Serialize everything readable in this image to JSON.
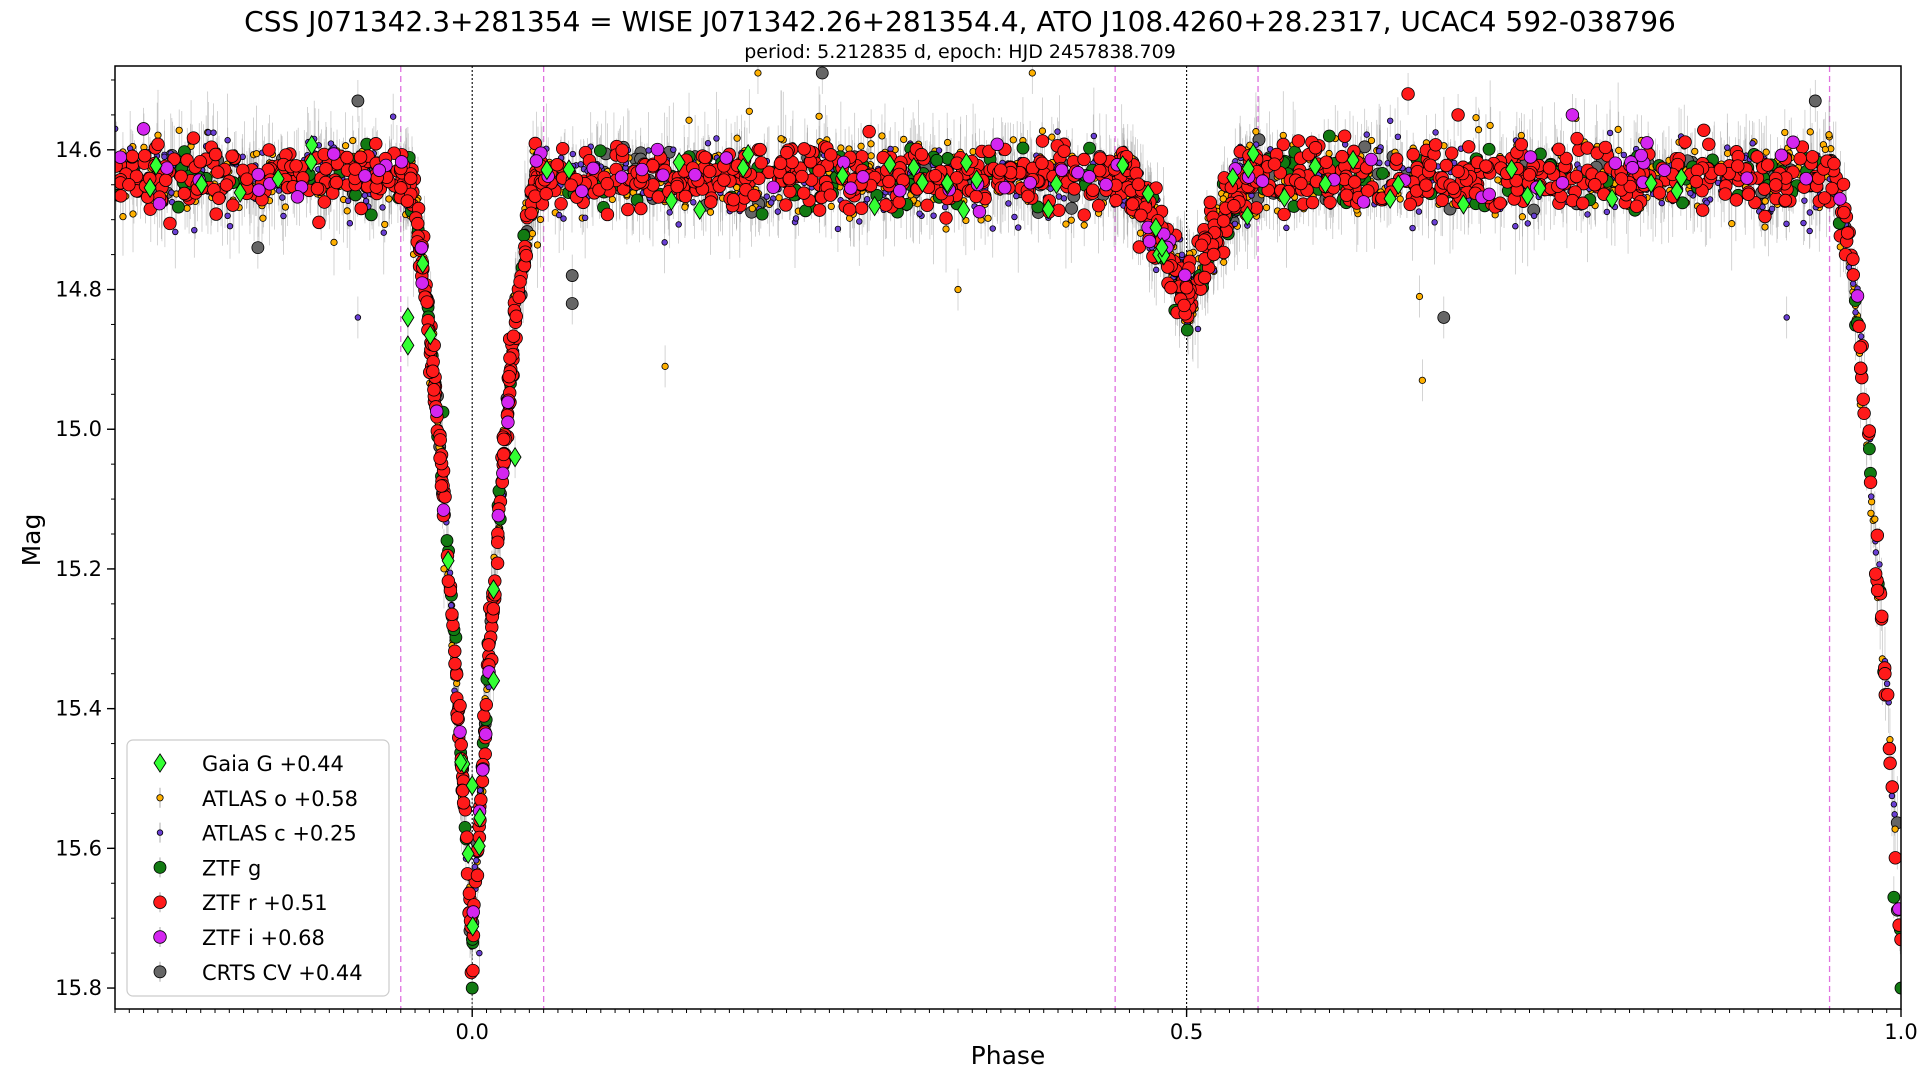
{
  "chart_data": {
    "type": "scatter",
    "title": "CSS J071342.3+281354 = WISE J071342.26+281354.4, ATO J108.4260+28.2317, UCAC4 592-038796",
    "subtitle": "period: 5.212835 d, epoch: HJD 2457838.709",
    "xlabel": "Phase",
    "ylabel": "Mag",
    "xlim": [
      -0.25,
      1.0
    ],
    "ylim": [
      15.83,
      14.48
    ],
    "y_inverted": true,
    "x_ticks": [
      0.0,
      0.5,
      1.0
    ],
    "x_tick_labels": [
      "0.0",
      "0.5",
      "1.0"
    ],
    "y_ticks": [
      14.6,
      14.8,
      15.0,
      15.2,
      15.4,
      15.6,
      15.8
    ],
    "y_tick_labels": [
      "14.6",
      "14.8",
      "15.0",
      "15.2",
      "15.4",
      "15.6",
      "15.8"
    ],
    "vlines_black_dotted": [
      0.0,
      0.5
    ],
    "vlines_magenta_dashed": [
      -0.05,
      0.05,
      0.45,
      0.55,
      0.95
    ],
    "legend_position": "lower-left",
    "light_curve_model": {
      "baseline_mag": 14.64,
      "primary_eclipse": {
        "phase": 0.0,
        "depth": 1.1,
        "half_width": 0.047
      },
      "secondary_eclipse": {
        "phase": 0.5,
        "depth": 0.17,
        "half_width": 0.045
      },
      "notes": "Data point clouds in each series follow this profile; scatter about 0.03 mag."
    },
    "series": [
      {
        "name": "Gaia G +0.44",
        "marker": "diamond",
        "color": "#33ff33",
        "size": 7,
        "count": 60,
        "outlier_points": [
          [
            0.0,
            15.51
          ],
          [
            0.015,
            15.36
          ],
          [
            0.03,
            15.04
          ],
          [
            -0.045,
            14.88
          ],
          [
            -0.045,
            14.84
          ]
        ]
      },
      {
        "name": "ATLAS o +0.58",
        "marker": "circle",
        "color": "#ffb000",
        "size": 3.2,
        "count": 1100,
        "outlier_points": [
          [
            0.135,
            14.91
          ],
          [
            0.34,
            14.8
          ],
          [
            0.665,
            14.93
          ],
          [
            0.663,
            14.81
          ],
          [
            0.392,
            14.49
          ],
          [
            0.2,
            14.49
          ]
        ]
      },
      {
        "name": "ATLAS c +0.25",
        "marker": "circle",
        "color": "#6a3fd4",
        "size": 2.8,
        "count": 800,
        "outlier_points": [
          [
            -0.08,
            14.84
          ],
          [
            0.92,
            14.84
          ],
          [
            0.0,
            15.73
          ],
          [
            0.005,
            15.75
          ]
        ]
      },
      {
        "name": "ZTF g",
        "marker": "circle",
        "color": "#127a12",
        "size": 6,
        "count": 260,
        "outlier_points": [
          [
            0.0,
            15.8
          ],
          [
            1.0,
            15.8
          ],
          [
            -0.005,
            15.57
          ],
          [
            0.995,
            15.67
          ]
        ]
      },
      {
        "name": "ZTF r +0.51",
        "marker": "circle",
        "color": "#ff1a1a",
        "size": 6.3,
        "count": 1300,
        "outlier_points": [
          [
            0.655,
            14.52
          ],
          [
            0.69,
            14.55
          ]
        ]
      },
      {
        "name": "ZTF i +0.68",
        "marker": "circle",
        "color": "#d426f0",
        "size": 6.3,
        "count": 90,
        "outlier_points": [
          [
            0.77,
            14.55
          ],
          [
            -0.23,
            14.57
          ],
          [
            0.025,
            14.99
          ]
        ]
      },
      {
        "name": "CRTS CV +0.44",
        "marker": "circle",
        "color": "#666666",
        "size": 6,
        "count": 180,
        "outlier_points": [
          [
            -0.08,
            14.53
          ],
          [
            0.245,
            14.49
          ],
          [
            0.94,
            14.53
          ],
          [
            0.68,
            14.84
          ],
          [
            0.07,
            14.82
          ],
          [
            0.07,
            14.78
          ],
          [
            -0.15,
            14.74
          ]
        ]
      }
    ]
  }
}
